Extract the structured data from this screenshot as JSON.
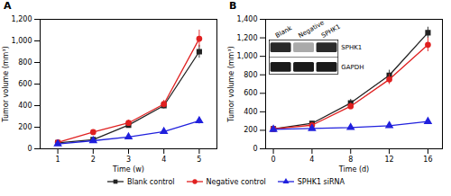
{
  "chart_data": [
    {
      "type": "line",
      "title": "A",
      "xlabel": "Time (w)",
      "ylabel": "Tumor volume (mm³)",
      "xlim": [
        0.5,
        5.5
      ],
      "ylim": [
        0,
        1200
      ],
      "xticks": [
        1,
        2,
        3,
        4,
        5
      ],
      "yticks": [
        0,
        200,
        400,
        600,
        800,
        {
          "value": 1000,
          "label": "1,000"
        },
        {
          "value": 1200,
          "label": "1,200"
        }
      ],
      "legend": "bottom",
      "x": [
        1,
        2,
        3,
        4,
        5
      ],
      "series": [
        {
          "name": "Blank control",
          "color": "#222222",
          "marker": "square",
          "values": [
            55,
            85,
            220,
            400,
            900
          ],
          "yerr": [
            10,
            12,
            20,
            30,
            60
          ]
        },
        {
          "name": "Negative control",
          "color": "#e02020",
          "marker": "circle",
          "values": [
            60,
            155,
            240,
            415,
            1020
          ],
          "yerr": [
            10,
            15,
            25,
            35,
            80
          ]
        },
        {
          "name": "SPHK1 siRNA",
          "color": "#2020dd",
          "marker": "triangle",
          "values": [
            45,
            75,
            110,
            160,
            260
          ],
          "yerr": [
            8,
            10,
            15,
            20,
            30
          ]
        }
      ]
    },
    {
      "type": "line",
      "title": "B",
      "xlabel": "Time (d)",
      "ylabel": "Tumor volume (mm³)",
      "xlim": [
        -0.8,
        17.5
      ],
      "ylim": [
        0,
        1400
      ],
      "xticks": [
        0,
        4,
        8,
        12,
        16
      ],
      "yticks": [
        0,
        200,
        400,
        600,
        800,
        {
          "value": 1000,
          "label": "1,000"
        },
        {
          "value": 1200,
          "label": "1,200"
        },
        {
          "value": 1400,
          "label": "1,400"
        }
      ],
      "legend": "bottom",
      "x": [
        0,
        4,
        8,
        12,
        16
      ],
      "series": [
        {
          "name": "Blank control",
          "color": "#222222",
          "marker": "square",
          "values": [
            215,
            275,
            495,
            795,
            1255
          ],
          "yerr": [
            10,
            20,
            40,
            55,
            60
          ]
        },
        {
          "name": "Negative control",
          "color": "#e02020",
          "marker": "circle",
          "values": [
            215,
            255,
            460,
            750,
            1125
          ],
          "yerr": [
            10,
            18,
            35,
            55,
            75
          ]
        },
        {
          "name": "SPHK1 siRNA",
          "color": "#2020dd",
          "marker": "triangle",
          "values": [
            210,
            220,
            230,
            250,
            295
          ],
          "yerr": [
            8,
            10,
            12,
            15,
            18
          ]
        }
      ],
      "annotations": [
        {
          "col_labels": [
            "Blank",
            "Negative",
            "SPHK1"
          ],
          "row_labels": [
            "SPHK1",
            "GAPDH"
          ],
          "band_colors": [
            [
              "#2a2a2a",
              "#aaaaaa",
              "#2a2a2a"
            ],
            [
              "#1a1a1a",
              "#1a1a1a",
              "#1a1a1a"
            ]
          ]
        }
      ]
    }
  ]
}
